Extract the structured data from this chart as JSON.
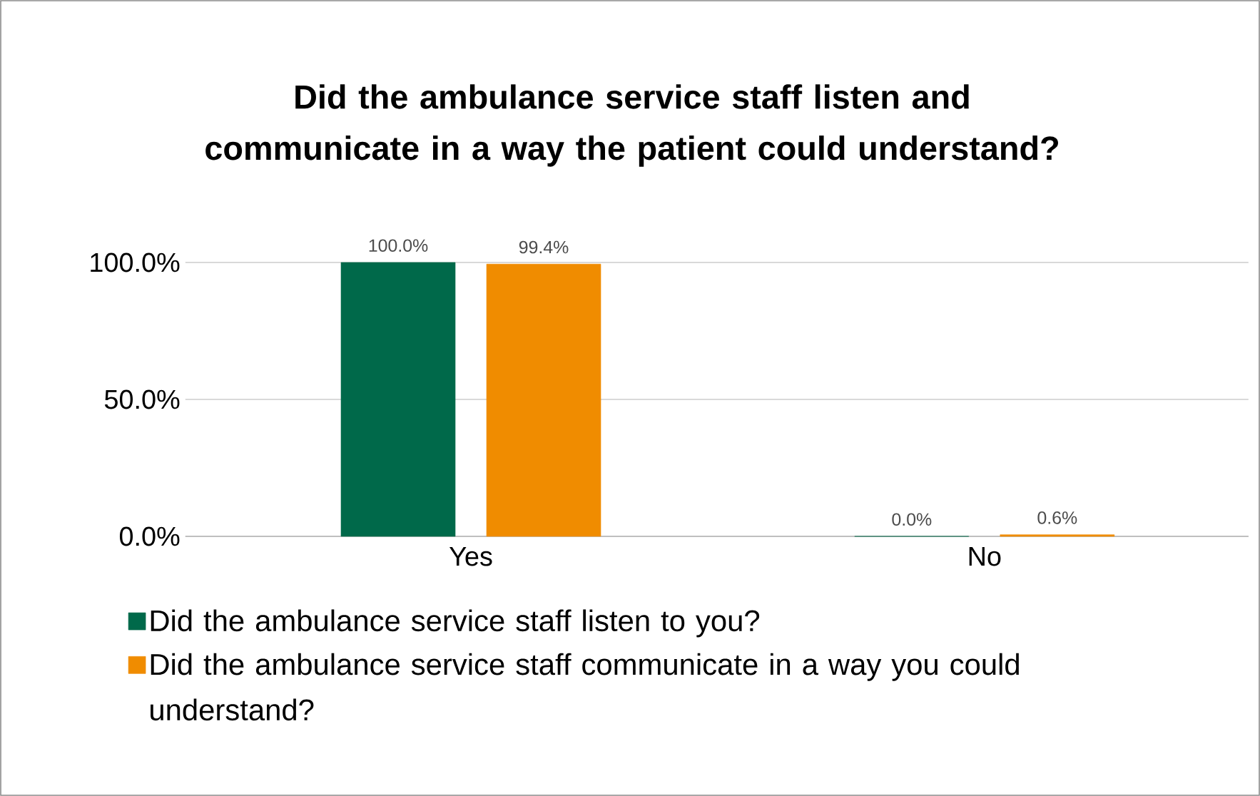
{
  "chart_data": {
    "type": "bar",
    "title": "Did the ambulance service staff listen and communicate in a way the patient could understand?",
    "categories": [
      "Yes",
      "No"
    ],
    "series": [
      {
        "name": "Did the ambulance service staff listen to you?",
        "color": "#00694a",
        "values": [
          100.0,
          0.0
        ],
        "value_labels": [
          "100.0%",
          "0.0%"
        ]
      },
      {
        "name": "Did the ambulance service staff communicate in a way you could understand?",
        "color": "#f08c00",
        "values": [
          99.4,
          0.6
        ],
        "value_labels": [
          "99.4%",
          "0.6%"
        ]
      }
    ],
    "ylim": [
      0,
      100
    ],
    "yticks": [
      {
        "value": 0,
        "label": "0.0%"
      },
      {
        "value": 50,
        "label": "50.0%"
      },
      {
        "value": 100,
        "label": "100.0%"
      }
    ],
    "grid": "y",
    "legend": "bottom"
  }
}
